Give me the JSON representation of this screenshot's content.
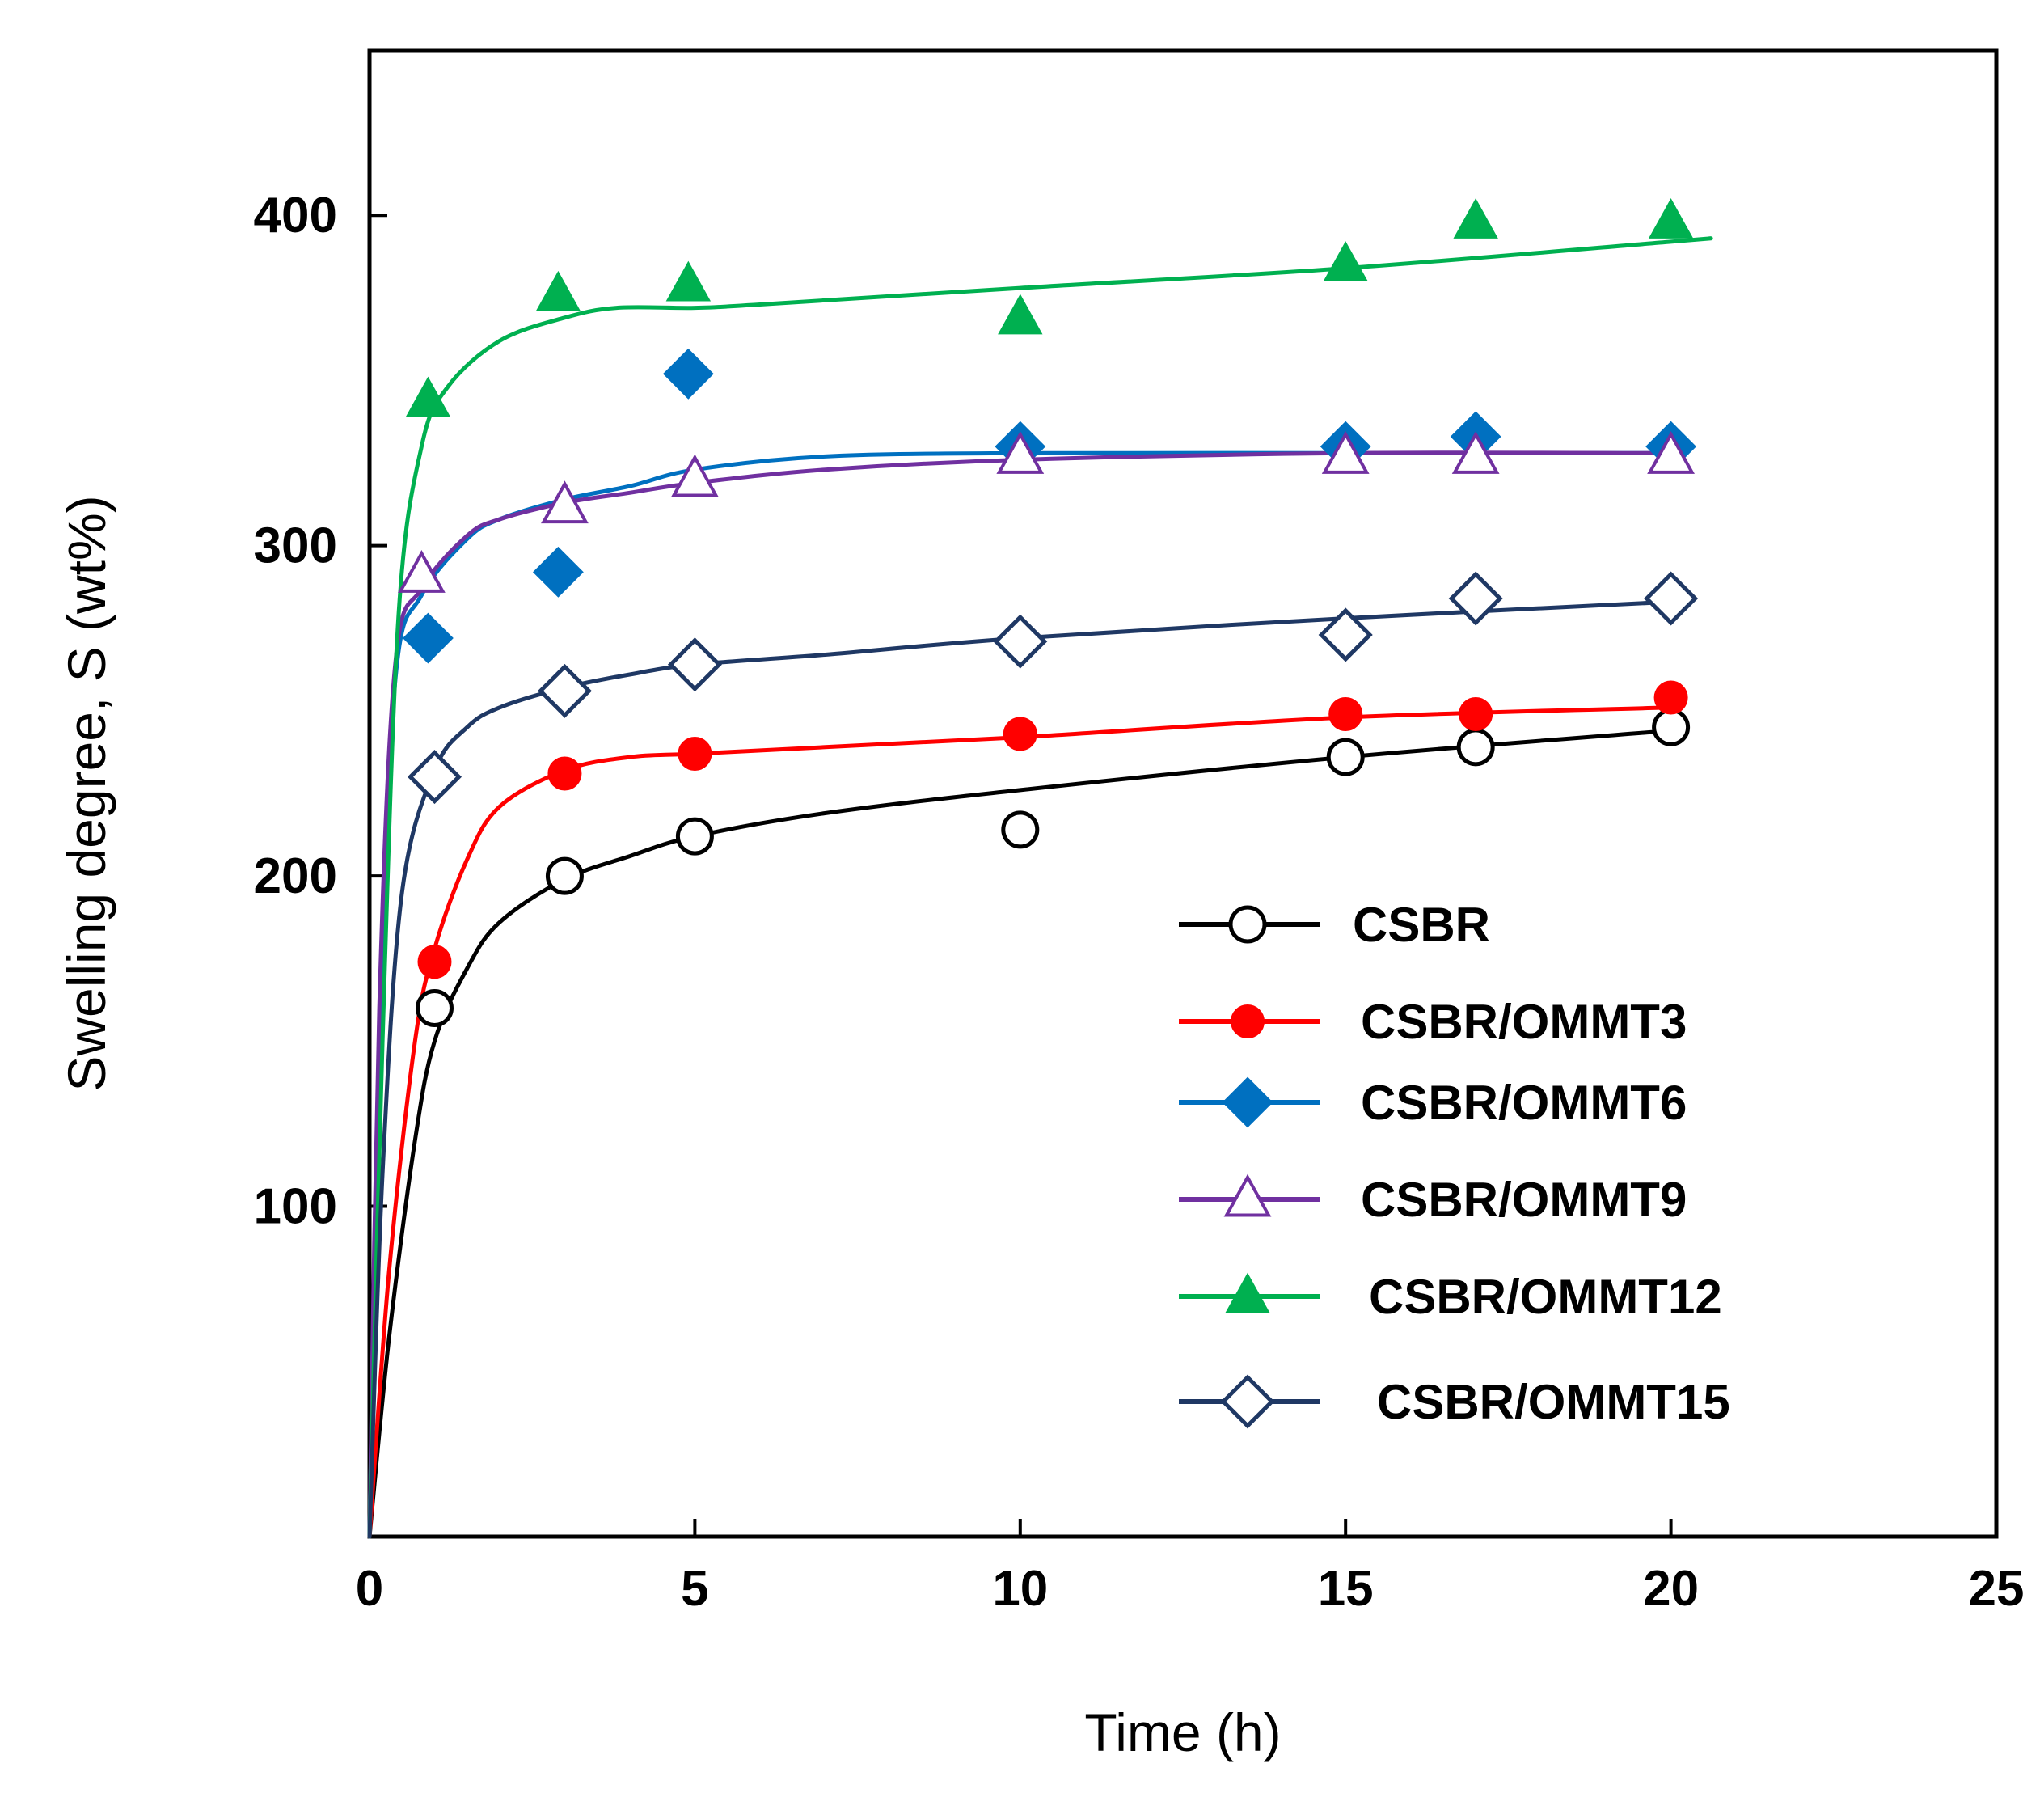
{
  "chart_data": {
    "type": "scatter",
    "xlabel": "Time (h)",
    "ylabel": "Swelling degree, S (wt%)",
    "xlim": [
      0,
      25
    ],
    "ylim": [
      0,
      450
    ],
    "xticks": [
      "0",
      "5",
      "10",
      "15",
      "20",
      "25"
    ],
    "yticks": [
      "100",
      "200",
      "300",
      "400"
    ],
    "grid": false,
    "legend_position": "bottom-right",
    "series": [
      {
        "name": "CSBR",
        "color": "#000000",
        "marker": "circle-open",
        "points": [
          [
            1,
            160
          ],
          [
            3,
            200
          ],
          [
            5,
            212
          ],
          [
            10,
            214
          ],
          [
            15,
            236
          ],
          [
            17,
            239
          ],
          [
            20,
            245
          ]
        ],
        "fit": [
          [
            0,
            0
          ],
          [
            0.3,
            60
          ],
          [
            0.7,
            120
          ],
          [
            1,
            150
          ],
          [
            1.5,
            172
          ],
          [
            2,
            186
          ],
          [
            3,
            199
          ],
          [
            4,
            206
          ],
          [
            5,
            212
          ],
          [
            7,
            219
          ],
          [
            10,
            226
          ],
          [
            15,
            236
          ],
          [
            20,
            244
          ]
        ]
      },
      {
        "name": "CSBR/OMMT3",
        "color": "#ff0000",
        "marker": "circle-filled",
        "points": [
          [
            1,
            174
          ],
          [
            3,
            231
          ],
          [
            5,
            237
          ],
          [
            10,
            243
          ],
          [
            15,
            249
          ],
          [
            17,
            249
          ],
          [
            20,
            254
          ]
        ],
        "fit": [
          [
            0,
            0
          ],
          [
            0.3,
            80
          ],
          [
            0.7,
            150
          ],
          [
            1,
            178
          ],
          [
            1.5,
            205
          ],
          [
            2,
            221
          ],
          [
            3,
            232
          ],
          [
            4,
            236
          ],
          [
            5,
            237
          ],
          [
            7,
            239
          ],
          [
            10,
            242
          ],
          [
            15,
            248
          ],
          [
            20,
            251
          ]
        ]
      },
      {
        "name": "CSBR/OMMT6",
        "color": "#0070c0",
        "marker": "diamond-filled",
        "points": [
          [
            0.9,
            272
          ],
          [
            2.9,
            292
          ],
          [
            4.9,
            352
          ],
          [
            10,
            330
          ],
          [
            15,
            330
          ],
          [
            17,
            333
          ],
          [
            20,
            330
          ]
        ],
        "fit": [
          [
            0,
            0
          ],
          [
            0.15,
            150
          ],
          [
            0.4,
            260
          ],
          [
            0.8,
            285
          ],
          [
            1.5,
            302
          ],
          [
            2,
            308
          ],
          [
            3,
            314
          ],
          [
            4,
            318
          ],
          [
            5,
            323
          ],
          [
            7,
            327
          ],
          [
            10,
            328
          ],
          [
            15,
            328
          ],
          [
            20,
            328
          ]
        ]
      },
      {
        "name": "CSBR/OMMT9",
        "color": "#7030a0",
        "marker": "triangle-open",
        "points": [
          [
            0.8,
            291
          ],
          [
            3,
            312
          ],
          [
            5,
            320
          ],
          [
            10,
            327
          ],
          [
            15,
            327
          ],
          [
            17,
            327
          ],
          [
            20,
            327
          ]
        ],
        "fit": [
          [
            0,
            0
          ],
          [
            0.15,
            160
          ],
          [
            0.4,
            265
          ],
          [
            0.8,
            287
          ],
          [
            1.5,
            303
          ],
          [
            2,
            308
          ],
          [
            3,
            313
          ],
          [
            4,
            316
          ],
          [
            5,
            319
          ],
          [
            7,
            323
          ],
          [
            10,
            326
          ],
          [
            15,
            328
          ],
          [
            20,
            328
          ]
        ]
      },
      {
        "name": "CSBR/OMMT12",
        "color": "#00b050",
        "marker": "triangle-filled",
        "points": [
          [
            0.9,
            344
          ],
          [
            2.9,
            376
          ],
          [
            4.9,
            379
          ],
          [
            10,
            369
          ],
          [
            15,
            385
          ],
          [
            17,
            398
          ],
          [
            20,
            398
          ]
        ],
        "fit": [
          [
            0,
            0
          ],
          [
            0.2,
            150
          ],
          [
            0.45,
            280
          ],
          [
            0.8,
            330
          ],
          [
            1.2,
            348
          ],
          [
            2,
            362
          ],
          [
            3,
            369
          ],
          [
            3.8,
            372
          ],
          [
            5,
            372
          ],
          [
            6,
            373
          ],
          [
            10,
            378
          ],
          [
            15,
            384
          ],
          [
            20,
            392
          ],
          [
            20.6,
            393
          ]
        ]
      },
      {
        "name": "CSBR/OMMT15",
        "color": "#1f3864",
        "marker": "diamond-open",
        "points": [
          [
            1,
            230
          ],
          [
            3,
            256
          ],
          [
            5,
            264
          ],
          [
            10,
            271
          ],
          [
            15,
            273
          ],
          [
            17,
            284
          ],
          [
            20,
            284
          ]
        ],
        "fit": [
          [
            0,
            0
          ],
          [
            0.2,
            110
          ],
          [
            0.5,
            195
          ],
          [
            1,
            232
          ],
          [
            1.5,
            245
          ],
          [
            2,
            251
          ],
          [
            3,
            257
          ],
          [
            4,
            261
          ],
          [
            5,
            264
          ],
          [
            7,
            267
          ],
          [
            10,
            272
          ],
          [
            15,
            278
          ],
          [
            20,
            283
          ]
        ]
      }
    ]
  }
}
